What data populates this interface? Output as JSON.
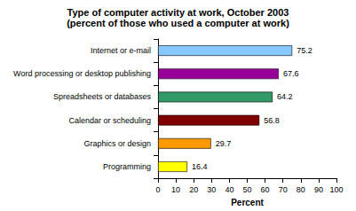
{
  "chart_data": {
    "type": "bar",
    "orientation": "horizontal",
    "title": "Type of computer activity at work, October 2003",
    "subtitle": "(percent of those who used a computer at work)",
    "x_label": "Percent",
    "categories": [
      "Internet or e-mail",
      "Word processing or desktop publishing",
      "Spreadsheets or databases",
      "Calendar or scheduling",
      "Graphics or design",
      "Programming"
    ],
    "values": [
      75.2,
      67.6,
      64.2,
      56.8,
      29.7,
      16.4
    ],
    "colors": [
      "#87c8ff",
      "#990099",
      "#339966",
      "#800000",
      "#ff9900",
      "#ffff00"
    ],
    "xlim": [
      0,
      100
    ],
    "xticks": [
      0,
      10,
      20,
      30,
      40,
      50,
      60,
      70,
      80,
      90,
      100
    ],
    "grid": false,
    "data_labels": true
  }
}
